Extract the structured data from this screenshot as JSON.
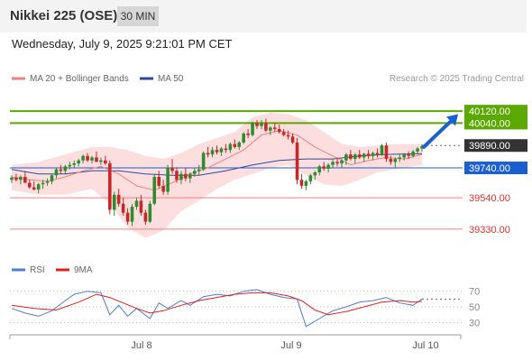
{
  "header": {
    "title": "Nikkei 225 (OSE)",
    "timeframe": "30 MIN",
    "datetime": "Wednesday, July 9, 2025 9:21:01 PM CET"
  },
  "legend": {
    "ma20": "MA 20 + Bollinger Bands",
    "ma50": "MA 50",
    "credit": "Research © 2025 Trading Central"
  },
  "colors": {
    "ma20": "#f08080",
    "ma50": "#2c4a9a",
    "bollinger": "#fbd0d0",
    "bull": "#2e8b2e",
    "bear": "#c62828",
    "target": "#5aa800",
    "pivot": "#1a5fd0",
    "support": "#f08080",
    "current": "#333333",
    "rsi": "#4f7bd6",
    "rsi_ma": "#e02020"
  },
  "chart_data": [
    {
      "type": "candlestick",
      "ylim": [
        39160,
        40260
      ],
      "x_ticks": [
        "Jul 8",
        "Jul 9",
        "Jul 10"
      ],
      "levels": [
        {
          "label": "40120.00",
          "value": 40120,
          "kind": "target"
        },
        {
          "label": "40040.00",
          "value": 40040,
          "kind": "target"
        },
        {
          "label": "39890.00",
          "value": 39890,
          "kind": "current"
        },
        {
          "label": "39740.00",
          "value": 39740,
          "kind": "pivot"
        },
        {
          "label": "39540.00",
          "value": 39540,
          "kind": "support"
        },
        {
          "label": "39330.00",
          "value": 39330,
          "kind": "support"
        }
      ],
      "arrow": {
        "from": 39880,
        "to": 40100
      },
      "candles": [
        [
          39660,
          39690,
          39640,
          39675
        ],
        [
          39675,
          39700,
          39650,
          39660
        ],
        [
          39660,
          39690,
          39630,
          39680
        ],
        [
          39680,
          39720,
          39650,
          39640
        ],
        [
          39640,
          39660,
          39600,
          39610
        ],
        [
          39610,
          39650,
          39590,
          39595
        ],
        [
          39595,
          39640,
          39570,
          39630
        ],
        [
          39630,
          39660,
          39600,
          39640
        ],
        [
          39640,
          39670,
          39620,
          39650
        ],
        [
          39650,
          39700,
          39630,
          39690
        ],
        [
          39690,
          39740,
          39670,
          39730
        ],
        [
          39730,
          39760,
          39700,
          39720
        ],
        [
          39720,
          39760,
          39700,
          39750
        ],
        [
          39750,
          39780,
          39730,
          39760
        ],
        [
          39760,
          39790,
          39740,
          39770
        ],
        [
          39770,
          39800,
          39750,
          39790
        ],
        [
          39790,
          39830,
          39770,
          39820
        ],
        [
          39820,
          39840,
          39780,
          39790
        ],
        [
          39790,
          39820,
          39770,
          39810
        ],
        [
          39810,
          39850,
          39790,
          39780
        ],
        [
          39780,
          39810,
          39760,
          39790
        ],
        [
          39790,
          39820,
          39760,
          39770
        ],
        [
          39770,
          39790,
          39430,
          39460
        ],
        [
          39460,
          39580,
          39420,
          39560
        ],
        [
          39560,
          39600,
          39480,
          39500
        ],
        [
          39500,
          39540,
          39420,
          39440
        ],
        [
          39440,
          39470,
          39360,
          39380
        ],
        [
          39380,
          39500,
          39350,
          39480
        ],
        [
          39480,
          39540,
          39460,
          39520
        ],
        [
          39520,
          39560,
          39420,
          39440
        ],
        [
          39440,
          39460,
          39360,
          39380
        ],
        [
          39380,
          39520,
          39370,
          39500
        ],
        [
          39500,
          39700,
          39490,
          39680
        ],
        [
          39680,
          39720,
          39600,
          39620
        ],
        [
          39620,
          39660,
          39560,
          39580
        ],
        [
          39580,
          39760,
          39560,
          39740
        ],
        [
          39740,
          39800,
          39700,
          39720
        ],
        [
          39720,
          39740,
          39640,
          39660
        ],
        [
          39660,
          39720,
          39630,
          39700
        ],
        [
          39700,
          39740,
          39650,
          39670
        ],
        [
          39670,
          39710,
          39640,
          39700
        ],
        [
          39700,
          39740,
          39680,
          39720
        ],
        [
          39720,
          39760,
          39690,
          39730
        ],
        [
          39730,
          39850,
          39720,
          39840
        ],
        [
          39840,
          39880,
          39810,
          39830
        ],
        [
          39830,
          39880,
          39810,
          39860
        ],
        [
          39860,
          39890,
          39830,
          39845
        ],
        [
          39845,
          39880,
          39820,
          39870
        ],
        [
          39870,
          39900,
          39840,
          39860
        ],
        [
          39860,
          39910,
          39840,
          39900
        ],
        [
          39900,
          39930,
          39870,
          39880
        ],
        [
          39880,
          39920,
          39860,
          39910
        ],
        [
          39910,
          39980,
          39900,
          39970
        ],
        [
          39970,
          40000,
          39940,
          39960
        ],
        [
          39960,
          40050,
          39950,
          40040
        ],
        [
          40040,
          40060,
          40000,
          40020
        ],
        [
          40020,
          40060,
          40000,
          40040
        ],
        [
          40040,
          40070,
          39980,
          39990
        ],
        [
          39990,
          40020,
          39960,
          40010
        ],
        [
          40010,
          40040,
          39980,
          40000
        ],
        [
          40000,
          40030,
          39970,
          39980
        ],
        [
          39980,
          40000,
          39950,
          39960
        ],
        [
          39960,
          39990,
          39930,
          39950
        ],
        [
          39950,
          39970,
          39900,
          39910
        ],
        [
          39910,
          39940,
          39630,
          39660
        ],
        [
          39660,
          39700,
          39600,
          39620
        ],
        [
          39620,
          39660,
          39590,
          39650
        ],
        [
          39650,
          39700,
          39630,
          39690
        ],
        [
          39690,
          39720,
          39660,
          39710
        ],
        [
          39710,
          39760,
          39690,
          39750
        ],
        [
          39750,
          39780,
          39720,
          39735
        ],
        [
          39735,
          39770,
          39710,
          39760
        ],
        [
          39760,
          39800,
          39740,
          39780
        ],
        [
          39780,
          39810,
          39750,
          39770
        ],
        [
          39770,
          39800,
          39740,
          39790
        ],
        [
          39790,
          39840,
          39760,
          39830
        ],
        [
          39830,
          39860,
          39790,
          39800
        ],
        [
          39800,
          39840,
          39770,
          39830
        ],
        [
          39830,
          39860,
          39800,
          39810
        ],
        [
          39810,
          39840,
          39780,
          39835
        ],
        [
          39835,
          39860,
          39800,
          39820
        ],
        [
          39820,
          39850,
          39790,
          39840
        ],
        [
          39840,
          39870,
          39810,
          39830
        ],
        [
          39830,
          39900,
          39820,
          39890
        ],
        [
          39890,
          39910,
          39780,
          39800
        ],
        [
          39800,
          39820,
          39760,
          39780
        ],
        [
          39780,
          39810,
          39740,
          39800
        ],
        [
          39800,
          39830,
          39780,
          39810
        ],
        [
          39810,
          39840,
          39790,
          39830
        ],
        [
          39830,
          39850,
          39800,
          39820
        ],
        [
          39820,
          39860,
          39810,
          39850
        ],
        [
          39850,
          39880,
          39830,
          39870
        ],
        [
          39870,
          39900,
          39850,
          39885
        ]
      ],
      "ma20": [
        [
          0,
          39680
        ],
        [
          4,
          39660
        ],
        [
          8,
          39650
        ],
        [
          12,
          39680
        ],
        [
          16,
          39720
        ],
        [
          20,
          39750
        ],
        [
          24,
          39700
        ],
        [
          28,
          39620
        ],
        [
          32,
          39590
        ],
        [
          36,
          39640
        ],
        [
          40,
          39700
        ],
        [
          44,
          39740
        ],
        [
          48,
          39800
        ],
        [
          52,
          39860
        ],
        [
          56,
          39960
        ],
        [
          60,
          39990
        ],
        [
          64,
          39960
        ],
        [
          68,
          39880
        ],
        [
          72,
          39820
        ],
        [
          76,
          39760
        ],
        [
          80,
          39790
        ],
        [
          84,
          39810
        ],
        [
          88,
          39800
        ],
        [
          92,
          39830
        ]
      ],
      "ma50": [
        [
          0,
          39730
        ],
        [
          6,
          39700
        ],
        [
          12,
          39700
        ],
        [
          18,
          39720
        ],
        [
          24,
          39720
        ],
        [
          30,
          39700
        ],
        [
          36,
          39690
        ],
        [
          42,
          39690
        ],
        [
          48,
          39720
        ],
        [
          54,
          39760
        ],
        [
          60,
          39790
        ],
        [
          66,
          39800
        ],
        [
          72,
          39800
        ],
        [
          78,
          39820
        ],
        [
          84,
          39830
        ],
        [
          92,
          39835
        ]
      ],
      "bollinger_upper": [
        [
          0,
          39760
        ],
        [
          6,
          39780
        ],
        [
          12,
          39830
        ],
        [
          18,
          39880
        ],
        [
          22,
          39880
        ],
        [
          26,
          39860
        ],
        [
          30,
          39820
        ],
        [
          34,
          39800
        ],
        [
          38,
          39840
        ],
        [
          42,
          39900
        ],
        [
          46,
          39940
        ],
        [
          50,
          39980
        ],
        [
          54,
          40080
        ],
        [
          58,
          40110
        ],
        [
          62,
          40100
        ],
        [
          66,
          40060
        ],
        [
          70,
          39980
        ],
        [
          74,
          39900
        ],
        [
          78,
          39880
        ],
        [
          82,
          39890
        ],
        [
          86,
          39900
        ],
        [
          92,
          39900
        ]
      ],
      "bollinger_lower": [
        [
          0,
          39590
        ],
        [
          6,
          39560
        ],
        [
          12,
          39560
        ],
        [
          18,
          39600
        ],
        [
          22,
          39500
        ],
        [
          26,
          39340
        ],
        [
          30,
          39270
        ],
        [
          34,
          39320
        ],
        [
          38,
          39450
        ],
        [
          42,
          39520
        ],
        [
          46,
          39600
        ],
        [
          50,
          39660
        ],
        [
          54,
          39700
        ],
        [
          58,
          39740
        ],
        [
          62,
          39760
        ],
        [
          66,
          39690
        ],
        [
          70,
          39630
        ],
        [
          74,
          39620
        ],
        [
          78,
          39660
        ],
        [
          82,
          39710
        ],
        [
          86,
          39730
        ],
        [
          92,
          39760
        ]
      ]
    },
    {
      "type": "line",
      "ylim": [
        20,
        80
      ],
      "ticks": [
        "70",
        "50",
        "30"
      ],
      "series": [
        {
          "name": "RSI",
          "values": [
            [
              0,
              48
            ],
            [
              3,
              42
            ],
            [
              6,
              38
            ],
            [
              9,
              45
            ],
            [
              12,
              58
            ],
            [
              14,
              66
            ],
            [
              17,
              70
            ],
            [
              20,
              68
            ],
            [
              22,
              40
            ],
            [
              24,
              52
            ],
            [
              26,
              38
            ],
            [
              28,
              48
            ],
            [
              31,
              35
            ],
            [
              33,
              55
            ],
            [
              35,
              48
            ],
            [
              38,
              58
            ],
            [
              40,
              52
            ],
            [
              43,
              63
            ],
            [
              46,
              66
            ],
            [
              49,
              64
            ],
            [
              52,
              70
            ],
            [
              55,
              72
            ],
            [
              58,
              66
            ],
            [
              61,
              62
            ],
            [
              64,
              60
            ],
            [
              66,
              25
            ],
            [
              69,
              35
            ],
            [
              72,
              45
            ],
            [
              75,
              50
            ],
            [
              78,
              56
            ],
            [
              81,
              58
            ],
            [
              84,
              62
            ],
            [
              87,
              55
            ],
            [
              90,
              52
            ],
            [
              92,
              60
            ]
          ]
        },
        {
          "name": "9MA",
          "values": [
            [
              0,
              52
            ],
            [
              5,
              48
            ],
            [
              10,
              46
            ],
            [
              15,
              56
            ],
            [
              19,
              66
            ],
            [
              22,
              62
            ],
            [
              25,
              55
            ],
            [
              28,
              48
            ],
            [
              31,
              42
            ],
            [
              34,
              45
            ],
            [
              38,
              52
            ],
            [
              42,
              58
            ],
            [
              46,
              62
            ],
            [
              50,
              66
            ],
            [
              54,
              68
            ],
            [
              58,
              68
            ],
            [
              62,
              64
            ],
            [
              65,
              58
            ],
            [
              68,
              46
            ],
            [
              71,
              40
            ],
            [
              75,
              44
            ],
            [
              79,
              50
            ],
            [
              83,
              56
            ],
            [
              87,
              58
            ],
            [
              90,
              56
            ],
            [
              92,
              57
            ]
          ]
        }
      ]
    }
  ]
}
